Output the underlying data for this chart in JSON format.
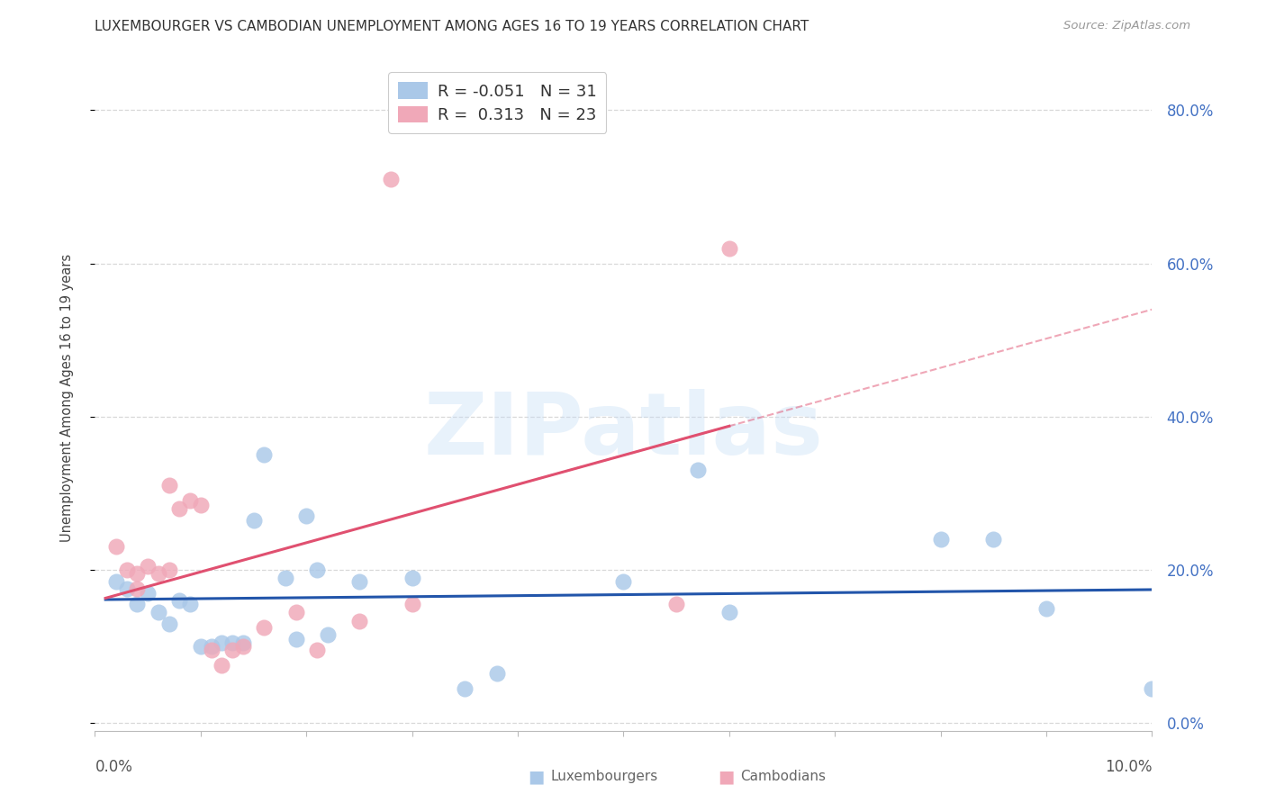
{
  "title": "LUXEMBOURGER VS CAMBODIAN UNEMPLOYMENT AMONG AGES 16 TO 19 YEARS CORRELATION CHART",
  "source": "Source: ZipAtlas.com",
  "ylabel": "Unemployment Among Ages 16 to 19 years",
  "xlim": [
    0.0,
    0.1
  ],
  "ylim": [
    -0.01,
    0.86
  ],
  "lux_color": "#aac8e8",
  "cam_color": "#f0a8b8",
  "lux_trend_color": "#2255aa",
  "cam_trend_color": "#e05070",
  "watermark": "ZIPatlas",
  "lux_r": -0.051,
  "lux_n": 31,
  "cam_r": 0.313,
  "cam_n": 23,
  "lux_points": [
    [
      0.002,
      0.185
    ],
    [
      0.003,
      0.175
    ],
    [
      0.004,
      0.155
    ],
    [
      0.005,
      0.17
    ],
    [
      0.006,
      0.145
    ],
    [
      0.007,
      0.13
    ],
    [
      0.008,
      0.16
    ],
    [
      0.009,
      0.155
    ],
    [
      0.01,
      0.1
    ],
    [
      0.011,
      0.1
    ],
    [
      0.012,
      0.105
    ],
    [
      0.013,
      0.105
    ],
    [
      0.014,
      0.105
    ],
    [
      0.015,
      0.265
    ],
    [
      0.016,
      0.35
    ],
    [
      0.018,
      0.19
    ],
    [
      0.019,
      0.11
    ],
    [
      0.02,
      0.27
    ],
    [
      0.021,
      0.2
    ],
    [
      0.022,
      0.115
    ],
    [
      0.025,
      0.185
    ],
    [
      0.03,
      0.19
    ],
    [
      0.035,
      0.045
    ],
    [
      0.038,
      0.065
    ],
    [
      0.05,
      0.185
    ],
    [
      0.057,
      0.33
    ],
    [
      0.06,
      0.145
    ],
    [
      0.08,
      0.24
    ],
    [
      0.085,
      0.24
    ],
    [
      0.09,
      0.15
    ],
    [
      0.1,
      0.045
    ]
  ],
  "cam_points": [
    [
      0.002,
      0.23
    ],
    [
      0.003,
      0.2
    ],
    [
      0.004,
      0.195
    ],
    [
      0.004,
      0.175
    ],
    [
      0.005,
      0.205
    ],
    [
      0.006,
      0.195
    ],
    [
      0.007,
      0.2
    ],
    [
      0.007,
      0.31
    ],
    [
      0.008,
      0.28
    ],
    [
      0.009,
      0.29
    ],
    [
      0.01,
      0.285
    ],
    [
      0.011,
      0.095
    ],
    [
      0.012,
      0.075
    ],
    [
      0.013,
      0.095
    ],
    [
      0.014,
      0.1
    ],
    [
      0.016,
      0.125
    ],
    [
      0.019,
      0.145
    ],
    [
      0.021,
      0.095
    ],
    [
      0.025,
      0.133
    ],
    [
      0.03,
      0.155
    ],
    [
      0.055,
      0.155
    ],
    [
      0.06,
      0.62
    ],
    [
      0.028,
      0.71
    ]
  ],
  "grid_color": "#d8d8d8",
  "bg_color": "#ffffff",
  "yticks": [
    0.0,
    0.2,
    0.4,
    0.6,
    0.8
  ],
  "yticklabels": [
    "0.0%",
    "20.0%",
    "40.0%",
    "60.0%",
    "80.0%"
  ],
  "xticks": [
    0.0,
    0.01,
    0.02,
    0.03,
    0.04,
    0.05,
    0.06,
    0.07,
    0.08,
    0.09,
    0.1
  ]
}
